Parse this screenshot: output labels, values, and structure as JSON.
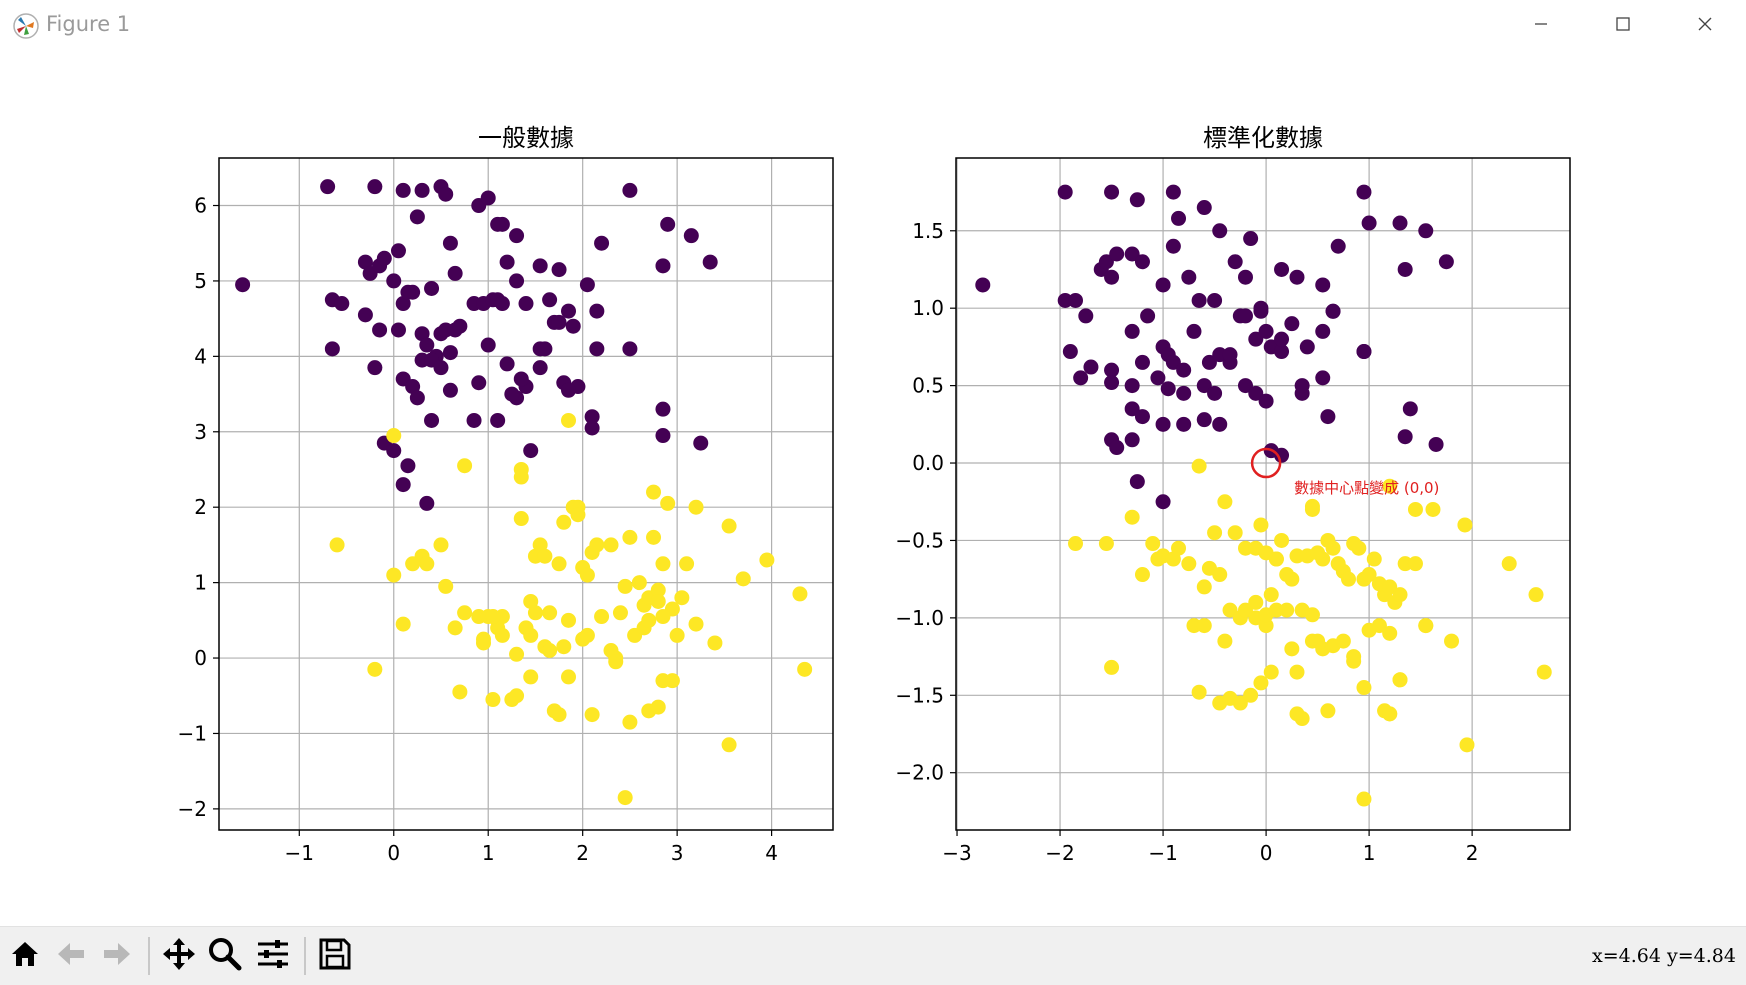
{
  "window": {
    "title": "Figure 1",
    "minimize_icon": "minimize-icon",
    "maximize_icon": "maximize-icon",
    "close_icon": "close-icon"
  },
  "colors": {
    "cluster0": "#440154",
    "cluster1": "#fde725",
    "annotation": "#e02020",
    "grid": "#b0b0b0"
  },
  "toolbar": {
    "tools": [
      "home-icon",
      "back-arrow-icon",
      "forward-arrow-icon",
      "pan-icon",
      "zoom-icon",
      "configure-subplots-icon",
      "save-icon"
    ],
    "coords": "x=4.64 y=4.84"
  },
  "chart_data": [
    {
      "type": "scatter",
      "title": "一般數據",
      "xlim": [
        -1.85,
        4.65
      ],
      "ylim": [
        -2.28,
        6.63
      ],
      "xticks": [
        -1,
        0,
        1,
        2,
        3,
        4
      ],
      "yticks": [
        -2,
        -1,
        0,
        1,
        2,
        3,
        4,
        5,
        6
      ],
      "grid": true,
      "series": [
        {
          "color": "#440154",
          "x": [
            -1.6,
            -0.7,
            -0.2,
            0.3,
            0.5,
            0.55,
            0.1,
            0.9,
            1.0,
            1.15,
            1.3,
            1.1,
            0.25,
            -0.65,
            -0.55,
            -0.3,
            -0.25,
            -0.15,
            -0.1,
            0.0,
            0.05,
            0.2,
            0.4,
            0.6,
            0.65,
            0.85,
            0.95,
            1.05,
            1.2,
            1.3,
            1.55,
            1.75,
            2.05,
            2.2,
            2.5,
            2.85,
            3.15,
            3.35,
            2.9,
            -0.65,
            -0.3,
            -0.15,
            -0.2,
            0.05,
            0.1,
            0.15,
            0.3,
            0.35,
            0.45,
            0.5,
            0.55,
            0.6,
            0.65,
            0.7,
            1.0,
            1.1,
            1.15,
            1.2,
            1.4,
            1.55,
            1.6,
            1.65,
            1.7,
            1.75,
            1.85,
            1.9,
            1.95,
            2.15,
            2.15,
            2.5,
            0.1,
            0.2,
            0.3,
            0.4,
            0.5,
            0.6,
            0.9,
            1.1,
            1.3,
            1.4,
            1.8,
            1.85,
            2.1,
            2.1,
            0.25,
            0.4,
            0.85,
            1.25,
            1.35,
            1.55,
            2.85,
            2.85,
            3.25,
            -0.1,
            0.0,
            0.1,
            0.15,
            0.35,
            1.45
          ],
          "y": [
            4.95,
            6.25,
            6.25,
            6.2,
            6.25,
            6.15,
            6.2,
            6.0,
            6.1,
            5.75,
            5.6,
            5.75,
            5.85,
            4.75,
            4.7,
            5.25,
            5.1,
            5.2,
            5.3,
            5.0,
            5.4,
            4.85,
            4.9,
            5.5,
            5.1,
            4.7,
            4.7,
            4.75,
            5.25,
            5.0,
            5.2,
            5.15,
            4.95,
            5.5,
            6.2,
            5.2,
            5.6,
            5.25,
            5.75,
            4.1,
            4.55,
            4.35,
            3.85,
            4.35,
            4.7,
            4.85,
            4.3,
            4.15,
            4.0,
            4.3,
            4.35,
            4.05,
            4.35,
            4.4,
            4.15,
            4.75,
            4.7,
            3.9,
            4.7,
            4.1,
            4.1,
            4.75,
            4.45,
            4.45,
            4.6,
            4.4,
            3.6,
            4.1,
            4.6,
            4.1,
            3.7,
            3.6,
            3.95,
            3.95,
            3.85,
            3.55,
            3.65,
            3.15,
            3.45,
            3.6,
            3.65,
            3.55,
            3.2,
            3.05,
            3.45,
            3.15,
            3.15,
            3.5,
            3.7,
            3.85,
            3.3,
            2.95,
            2.85,
            2.85,
            2.75,
            2.3,
            2.55,
            2.05,
            2.75
          ]
        },
        {
          "color": "#fde725",
          "x": [
            0.0,
            0.75,
            1.35,
            1.35,
            1.85,
            1.95,
            2.75,
            0.0,
            -0.6,
            -0.2,
            0.1,
            0.3,
            0.35,
            0.5,
            0.55,
            0.2,
            0.65,
            0.7,
            0.9,
            0.95,
            1.0,
            1.1,
            1.15,
            1.35,
            1.4,
            1.45,
            1.5,
            1.55,
            1.6,
            1.65,
            1.75,
            1.8,
            1.85,
            1.9,
            1.95,
            2.0,
            2.05,
            2.1,
            2.15,
            2.2,
            2.3,
            2.35,
            2.45,
            2.5,
            2.55,
            2.6,
            2.65,
            2.7,
            2.75,
            2.8,
            2.85,
            2.9,
            2.95,
            3.1,
            3.2,
            3.4,
            3.55,
            3.7,
            3.95,
            4.3,
            4.35,
            1.05,
            1.25,
            1.3,
            1.45,
            1.6,
            1.7,
            1.75,
            1.85,
            2.0,
            2.1,
            2.3,
            2.35,
            2.5,
            2.7,
            2.8,
            2.85,
            2.95,
            3.05,
            3.2,
            0.95,
            1.1,
            1.3,
            1.45,
            1.5,
            1.65,
            1.8,
            2.05,
            2.4,
            2.65,
            2.7,
            2.8,
            2.85,
            3.0,
            3.55,
            2.45,
            0.75,
            1.05,
            1.15
          ],
          "y": [
            2.95,
            2.55,
            2.5,
            2.4,
            3.15,
            2.0,
            2.2,
            1.1,
            1.5,
            -0.15,
            0.45,
            1.35,
            1.25,
            1.5,
            0.95,
            1.25,
            0.4,
            -0.45,
            0.55,
            0.25,
            0.55,
            0.5,
            0.55,
            1.85,
            0.4,
            0.3,
            1.35,
            1.5,
            1.35,
            0.6,
            1.25,
            1.8,
            0.5,
            2.0,
            1.9,
            1.2,
            1.1,
            1.4,
            1.5,
            0.55,
            1.5,
            0.0,
            0.95,
            1.6,
            0.3,
            1.0,
            0.7,
            0.8,
            1.6,
            0.9,
            1.25,
            2.05,
            0.65,
            1.25,
            0.45,
            0.2,
            1.75,
            1.05,
            1.3,
            0.85,
            -0.15,
            -0.55,
            -0.55,
            -0.5,
            -0.25,
            0.15,
            -0.7,
            -0.75,
            -0.25,
            0.25,
            -0.75,
            0.1,
            -0.05,
            -0.85,
            -0.7,
            -0.65,
            -0.3,
            -0.3,
            0.8,
            2.0,
            0.2,
            0.4,
            0.05,
            0.75,
            0.6,
            0.1,
            0.15,
            0.3,
            0.6,
            0.4,
            0.5,
            0.75,
            0.55,
            0.3,
            -1.15,
            -1.85,
            0.6,
            0.55,
            0.3
          ]
        }
      ]
    },
    {
      "type": "scatter",
      "title": "標準化數據",
      "xlim": [
        -3.01,
        2.95
      ],
      "ylim": [
        -2.37,
        1.97
      ],
      "xticks": [
        -3,
        -2,
        -1,
        0,
        1,
        2
      ],
      "yticks": [
        -2.0,
        -1.5,
        -1.0,
        -0.5,
        0.0,
        0.5,
        1.0,
        1.5
      ],
      "grid": true,
      "annotation": {
        "text": "數據中心點變成 (0,0)",
        "x": 0.0,
        "y": 0.0
      },
      "series": [
        {
          "color": "#440154",
          "x": [
            -2.75,
            -1.95,
            -1.5,
            -1.25,
            -0.9,
            -0.85,
            -0.6,
            -0.45,
            -0.15,
            0.95,
            1.3,
            1.55,
            1.75,
            -1.95,
            -1.85,
            -1.75,
            -1.6,
            -1.55,
            -1.5,
            -1.45,
            -1.3,
            -1.2,
            -1.0,
            -0.9,
            -0.75,
            -0.65,
            -0.5,
            -0.3,
            -0.2,
            -0.05,
            0.15,
            0.3,
            0.55,
            0.7,
            1.0,
            1.35,
            -1.9,
            -1.7,
            -1.5,
            -1.3,
            -1.15,
            -1.0,
            -0.95,
            -0.9,
            -0.8,
            -0.7,
            -0.55,
            -0.45,
            -0.35,
            -0.25,
            -0.1,
            0.0,
            0.25,
            0.4,
            0.55,
            0.65,
            0.95,
            -1.8,
            -1.5,
            -1.3,
            -1.2,
            -1.05,
            -0.95,
            -0.8,
            -0.6,
            -0.5,
            -0.35,
            -0.2,
            -0.05,
            0.05,
            0.15,
            0.35,
            0.6,
            0.95,
            1.4,
            -1.3,
            -1.2,
            -1.0,
            -0.8,
            -0.6,
            -0.45,
            -0.2,
            -0.1,
            0.0,
            0.15,
            0.35,
            0.55,
            0.65,
            1.35,
            1.65,
            -1.5,
            -1.45,
            -1.3,
            -1.25,
            -1.0,
            0.05,
            0.15
          ],
          "y": [
            1.15,
            1.75,
            1.75,
            1.7,
            1.75,
            1.58,
            1.65,
            1.5,
            1.45,
            1.75,
            1.55,
            1.5,
            1.3,
            1.05,
            1.05,
            0.95,
            1.25,
            1.3,
            1.2,
            1.35,
            1.35,
            1.3,
            1.15,
            1.4,
            1.2,
            1.05,
            1.05,
            1.3,
            1.2,
            1.0,
            1.25,
            1.2,
            1.15,
            1.4,
            1.55,
            1.25,
            0.72,
            0.62,
            0.6,
            0.85,
            0.95,
            0.75,
            0.7,
            0.65,
            0.6,
            0.85,
            0.65,
            0.7,
            0.65,
            0.95,
            0.8,
            0.85,
            0.9,
            0.75,
            0.85,
            0.98,
            0.72,
            0.55,
            0.52,
            0.5,
            0.65,
            0.55,
            0.48,
            0.45,
            0.5,
            0.45,
            0.7,
            0.95,
            0.98,
            0.75,
            0.72,
            0.45,
            0.3,
            0.72,
            0.35,
            0.35,
            0.3,
            0.25,
            0.25,
            0.28,
            0.25,
            0.5,
            0.45,
            0.4,
            0.8,
            0.5,
            0.55,
            0.98,
            0.17,
            0.12,
            0.15,
            0.1,
            0.15,
            -0.12,
            -0.25,
            0.08,
            0.05
          ]
        },
        {
          "color": "#fde725",
          "x": [
            -1.3,
            -0.65,
            -0.4,
            0.45,
            -0.05,
            0.45,
            1.2,
            1.45,
            1.62,
            1.93,
            2.36,
            2.62,
            -1.85,
            -1.55,
            -1.2,
            -1.0,
            -0.9,
            -0.6,
            -0.5,
            -0.35,
            -0.25,
            -0.1,
            0.0,
            0.05,
            0.1,
            0.15,
            0.25,
            0.35,
            0.45,
            0.55,
            0.65,
            0.75,
            0.85,
            0.95,
            1.05,
            1.15,
            1.25,
            1.35,
            1.45,
            -1.1,
            -1.05,
            -0.85,
            -0.75,
            -0.55,
            -0.45,
            -0.3,
            -0.2,
            -0.1,
            0.0,
            0.1,
            0.2,
            0.3,
            0.4,
            0.5,
            0.6,
            0.7,
            0.8,
            0.9,
            1.0,
            1.1,
            1.2,
            1.3,
            1.55,
            1.8,
            -1.5,
            -0.65,
            -0.45,
            -0.35,
            -0.25,
            -0.15,
            -0.05,
            0.05,
            0.25,
            0.3,
            0.35,
            0.6,
            0.85,
            0.95,
            1.15,
            1.2,
            1.3,
            1.55,
            1.95,
            2.7,
            0.5,
            -0.7,
            -0.4,
            -0.2,
            -0.1,
            0.0,
            0.1,
            0.2,
            0.3,
            0.45,
            0.55,
            0.65,
            0.75,
            0.85,
            1.0,
            1.1,
            1.2,
            -0.6,
            0.95,
            1.2,
            1.3
          ],
          "y": [
            -0.35,
            -0.02,
            -0.25,
            -0.3,
            -0.4,
            -0.28,
            -0.15,
            -0.3,
            -0.3,
            -0.4,
            -0.65,
            -0.85,
            -0.52,
            -0.52,
            -0.72,
            -0.6,
            -0.62,
            -0.8,
            -0.45,
            -0.95,
            -1.0,
            -1.0,
            -1.05,
            -0.85,
            -0.62,
            -0.5,
            -0.75,
            -0.95,
            -0.98,
            -0.62,
            -0.55,
            -0.7,
            -0.52,
            -0.75,
            -0.62,
            -0.85,
            -0.9,
            -0.65,
            -0.65,
            -0.52,
            -0.62,
            -0.55,
            -0.65,
            -0.68,
            -0.72,
            -0.45,
            -0.55,
            -0.55,
            -0.58,
            -0.62,
            -0.72,
            -0.6,
            -0.6,
            -0.58,
            -0.5,
            -0.65,
            -0.75,
            -0.55,
            -0.72,
            -0.78,
            -0.8,
            -0.85,
            -1.05,
            -1.15,
            -1.32,
            -1.48,
            -1.55,
            -1.52,
            -1.55,
            -1.5,
            -1.42,
            -1.35,
            -1.2,
            -1.62,
            -1.65,
            -1.6,
            -1.28,
            -1.45,
            -1.6,
            -1.62,
            -1.4,
            -1.05,
            -1.82,
            -1.35,
            -1.15,
            -1.05,
            -1.15,
            -0.95,
            -0.9,
            -0.98,
            -0.95,
            -0.95,
            -1.35,
            -1.15,
            -1.2,
            -1.18,
            -1.15,
            -1.25,
            -1.08,
            -1.05,
            -1.1,
            -1.05,
            -2.17,
            -1.62,
            -1.4
          ]
        }
      ]
    }
  ]
}
